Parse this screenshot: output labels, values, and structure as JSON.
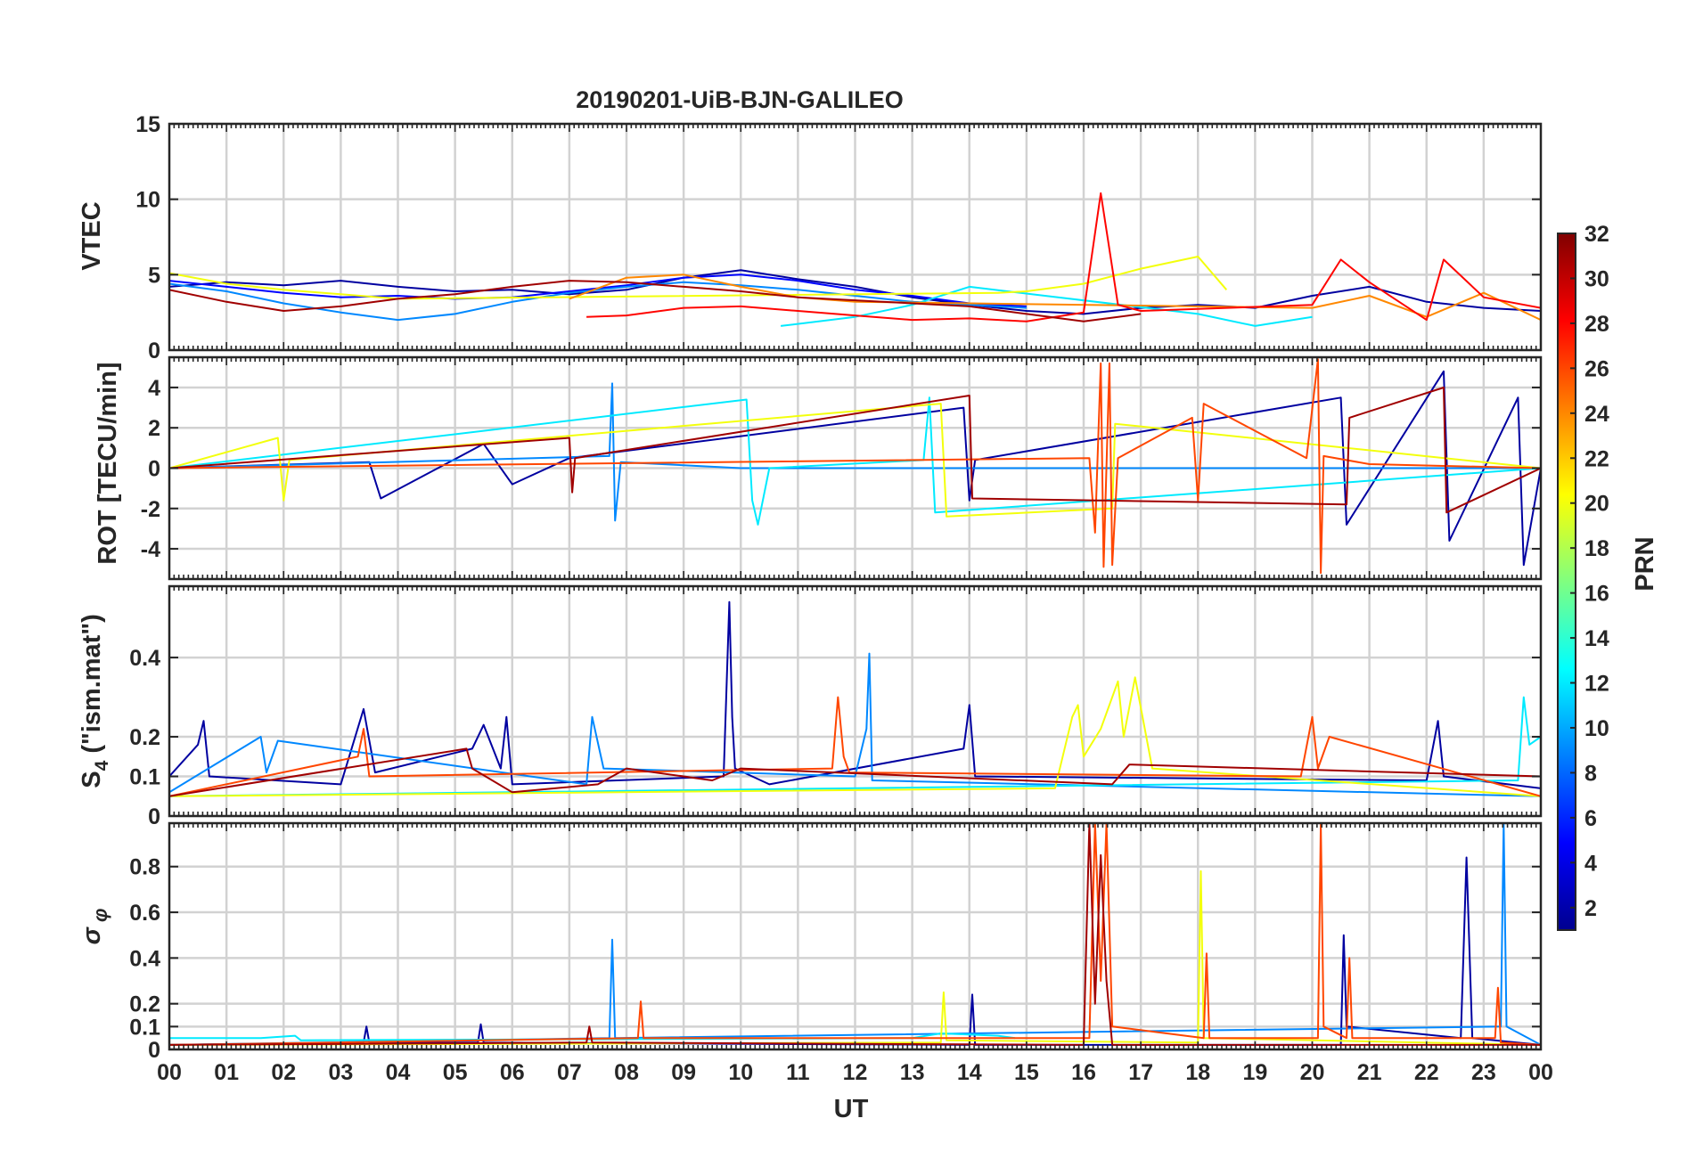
{
  "chart_data": {
    "type": "line",
    "title": "20190201-UiB-BJN-GALILEO",
    "xlabel": "UT",
    "x_tick_labels": [
      "00",
      "01",
      "02",
      "03",
      "04",
      "05",
      "06",
      "07",
      "08",
      "09",
      "10",
      "11",
      "12",
      "13",
      "14",
      "15",
      "16",
      "17",
      "18",
      "19",
      "20",
      "21",
      "22",
      "23",
      "00"
    ],
    "xlim_hours": [
      0,
      24
    ],
    "grid": true,
    "colormap": "jet",
    "colorbar": {
      "label": "PRN",
      "range": [
        1,
        32
      ],
      "tick_labels": [
        "2",
        "4",
        "6",
        "8",
        "10",
        "12",
        "14",
        "16",
        "18",
        "20",
        "22",
        "24",
        "26",
        "28",
        "30",
        "32"
      ],
      "placement": "right"
    },
    "panels": [
      {
        "id": "vtec",
        "ylabel": "VTEC",
        "ylim": [
          0,
          15
        ],
        "y_ticks": [
          0,
          5,
          10,
          15
        ],
        "series": [
          {
            "prn": 2,
            "x": [
              0,
              1,
              2,
              3,
              4,
              5,
              6,
              7,
              8,
              9,
              10,
              11,
              12,
              13,
              14,
              15,
              16,
              17,
              18,
              19,
              20,
              21,
              22,
              23,
              24
            ],
            "y": [
              4.2,
              4.5,
              4.3,
              4.6,
              4.2,
              3.9,
              4.0,
              3.7,
              4.0,
              4.8,
              5.3,
              4.7,
              4.2,
              3.5,
              3.0,
              2.6,
              2.4,
              2.8,
              3.0,
              2.8,
              3.6,
              4.2,
              3.2,
              2.8,
              2.6
            ]
          },
          {
            "prn": 5,
            "x": [
              0,
              1,
              2,
              3,
              4,
              5,
              6,
              7,
              8,
              9,
              10,
              11,
              12,
              13,
              14,
              15
            ],
            "y": [
              4.6,
              4.2,
              3.8,
              3.5,
              3.6,
              3.4,
              3.5,
              3.9,
              4.3,
              4.8,
              5.0,
              4.6,
              4.0,
              3.6,
              3.1,
              2.9
            ]
          },
          {
            "prn": 9,
            "x": [
              0,
              1,
              2,
              3,
              4,
              5,
              6,
              7,
              8,
              9,
              10,
              11,
              12,
              13,
              14,
              15
            ],
            "y": [
              4.4,
              3.9,
              3.1,
              2.5,
              2.0,
              2.4,
              3.2,
              3.8,
              4.2,
              4.5,
              4.3,
              4.0,
              3.6,
              3.2,
              3.0,
              2.8
            ]
          },
          {
            "prn": 12,
            "x": [
              10.7,
              12,
              13,
              14,
              18,
              19,
              20
            ],
            "y": [
              1.6,
              2.2,
              3.0,
              4.2,
              2.4,
              1.6,
              2.2
            ]
          },
          {
            "prn": 20,
            "x": [
              0,
              1,
              2,
              3,
              4,
              14.5,
              15,
              16,
              17,
              18,
              18.5
            ],
            "y": [
              5.1,
              4.4,
              4.0,
              3.7,
              3.4,
              3.8,
              3.9,
              4.4,
              5.4,
              6.2,
              4.0
            ]
          },
          {
            "prn": 24,
            "x": [
              7,
              8,
              9,
              10,
              11,
              12,
              20,
              21,
              22,
              23,
              24
            ],
            "y": [
              3.4,
              4.8,
              5.0,
              4.2,
              3.5,
              3.2,
              2.8,
              3.6,
              2.2,
              3.8,
              2.0
            ]
          },
          {
            "prn": 28,
            "x": [
              7.3,
              8,
              9,
              10,
              11,
              12,
              13,
              14,
              15,
              16,
              16.3,
              16.6,
              17,
              20,
              20.5,
              21,
              22,
              22.3,
              23,
              24
            ],
            "y": [
              2.2,
              2.3,
              2.8,
              2.9,
              2.6,
              2.3,
              2.0,
              2.1,
              1.9,
              2.5,
              10.4,
              3.0,
              2.6,
              3.0,
              6.0,
              4.5,
              2.0,
              6.0,
              3.5,
              2.8
            ]
          },
          {
            "prn": 31,
            "x": [
              0,
              1,
              2,
              3,
              4,
              5,
              6,
              7,
              8,
              9,
              10,
              11,
              12,
              13,
              14,
              15,
              16,
              17
            ],
            "y": [
              4.0,
              3.2,
              2.6,
              2.9,
              3.4,
              3.7,
              4.2,
              4.6,
              4.5,
              4.2,
              3.9,
              3.5,
              3.3,
              3.1,
              2.9,
              2.4,
              1.9,
              2.4
            ]
          }
        ]
      },
      {
        "id": "rot",
        "ylabel": "ROT [TECU/min]",
        "ylim": [
          -5.5,
          5.5
        ],
        "y_ticks": [
          -4,
          -2,
          0,
          2,
          4
        ],
        "series": [
          {
            "prn": 2,
            "x": [
              0,
              3.5,
              3.7,
              5.5,
              6,
              7,
              13.9,
              14,
              14.1,
              20.5,
              20.6,
              22.3,
              22.4,
              23.6,
              23.7,
              24
            ],
            "y": [
              0,
              0.3,
              -1.5,
              1.2,
              -0.8,
              0.5,
              3.0,
              -1.6,
              0.4,
              3.5,
              -2.8,
              4.8,
              -3.6,
              3.5,
              -4.8,
              0
            ]
          },
          {
            "prn": 9,
            "x": [
              0,
              7.7,
              7.75,
              7.8,
              7.9,
              10,
              24
            ],
            "y": [
              0,
              0.6,
              4.2,
              -2.6,
              0.3,
              0,
              0
            ]
          },
          {
            "prn": 12,
            "x": [
              0,
              10.1,
              10.2,
              10.3,
              10.5,
              13.2,
              13.3,
              13.4,
              24
            ],
            "y": [
              0,
              3.4,
              -1.6,
              -2.8,
              0,
              0.4,
              3.5,
              -2.2,
              0
            ]
          },
          {
            "prn": 20,
            "x": [
              0,
              1.9,
              2.0,
              2.1,
              13.5,
              13.6,
              16.5,
              16.55,
              24
            ],
            "y": [
              0,
              1.5,
              -1.6,
              0.4,
              3.2,
              -2.4,
              -2.0,
              2.2,
              0
            ]
          },
          {
            "prn": 26,
            "x": [
              0,
              16.1,
              16.2,
              16.3,
              16.35,
              16.45,
              16.5,
              16.6,
              17.9,
              18.0,
              18.1,
              19.9,
              20.1,
              20.15,
              20.2,
              21,
              24
            ],
            "y": [
              0,
              0.5,
              -3.2,
              5.2,
              -4.9,
              5.2,
              -4.8,
              0.5,
              2.5,
              -1.6,
              3.2,
              0.5,
              5.4,
              -5.2,
              0.6,
              0.2,
              0
            ]
          },
          {
            "prn": 31,
            "x": [
              0,
              7.0,
              7.05,
              7.1,
              14.0,
              14.05,
              20.6,
              20.65,
              22.3,
              22.35,
              24
            ],
            "y": [
              0,
              1.5,
              -1.2,
              0.5,
              3.6,
              -1.5,
              -1.8,
              2.5,
              4.0,
              -2.2,
              0
            ]
          }
        ]
      },
      {
        "id": "s4",
        "ylabel": "S4 (\"ism.mat\")",
        "ylim": [
          0,
          0.58
        ],
        "y_ticks": [
          0,
          0.1,
          0.2,
          0.4
        ],
        "series": [
          {
            "prn": 2,
            "x": [
              0,
              0.5,
              0.6,
              0.7,
              3.0,
              3.4,
              3.6,
              5.3,
              5.5,
              5.8,
              5.9,
              6.0,
              9.7,
              9.8,
              9.85,
              9.9,
              10.5,
              13.9,
              14.0,
              14.1,
              22.0,
              22.2,
              22.3,
              24
            ],
            "y": [
              0.1,
              0.18,
              0.24,
              0.1,
              0.08,
              0.27,
              0.11,
              0.17,
              0.23,
              0.12,
              0.25,
              0.08,
              0.1,
              0.54,
              0.25,
              0.12,
              0.08,
              0.17,
              0.28,
              0.1,
              0.09,
              0.24,
              0.1,
              0.07
            ]
          },
          {
            "prn": 9,
            "x": [
              0,
              1.6,
              1.7,
              1.9,
              7.3,
              7.4,
              7.6,
              12.0,
              12.2,
              12.25,
              12.3,
              24
            ],
            "y": [
              0.06,
              0.2,
              0.11,
              0.19,
              0.08,
              0.25,
              0.12,
              0.1,
              0.22,
              0.41,
              0.09,
              0.05
            ]
          },
          {
            "prn": 12,
            "x": [
              0,
              23.6,
              23.7,
              23.8,
              24
            ],
            "y": [
              0.05,
              0.09,
              0.3,
              0.18,
              0.2
            ]
          },
          {
            "prn": 20,
            "x": [
              0,
              15.5,
              15.8,
              15.9,
              16.0,
              16.3,
              16.6,
              16.7,
              16.9,
              17.2,
              24
            ],
            "y": [
              0.05,
              0.07,
              0.25,
              0.28,
              0.15,
              0.22,
              0.34,
              0.2,
              0.35,
              0.12,
              0.05
            ]
          },
          {
            "prn": 26,
            "x": [
              0,
              3.3,
              3.4,
              3.5,
              11.6,
              11.7,
              11.8,
              11.9,
              19.8,
              20.0,
              20.1,
              20.3,
              24
            ],
            "y": [
              0.05,
              0.15,
              0.22,
              0.1,
              0.12,
              0.3,
              0.15,
              0.11,
              0.1,
              0.25,
              0.12,
              0.2,
              0.05
            ]
          },
          {
            "prn": 31,
            "x": [
              0,
              5.2,
              5.3,
              6.0,
              7.5,
              8.0,
              9.5,
              10.0,
              16.5,
              16.8,
              24
            ],
            "y": [
              0.05,
              0.17,
              0.12,
              0.06,
              0.08,
              0.12,
              0.09,
              0.12,
              0.08,
              0.13,
              0.1
            ]
          }
        ]
      },
      {
        "id": "sigma_phi",
        "ylabel": "σ φ",
        "ylim": [
          0,
          0.99
        ],
        "y_ticks": [
          0,
          0.1,
          0.2,
          0.4,
          0.6,
          0.8
        ],
        "series": [
          {
            "prn": 2,
            "x": [
              0,
              3.4,
              3.45,
              3.5,
              5.4,
              5.45,
              5.5,
              14.0,
              14.05,
              14.1,
              20.5,
              20.55,
              20.6,
              22.6,
              22.7,
              22.8,
              24
            ],
            "y": [
              0.02,
              0.03,
              0.1,
              0.03,
              0.03,
              0.11,
              0.03,
              0.02,
              0.24,
              0.02,
              0.02,
              0.5,
              0.1,
              0.05,
              0.84,
              0.05,
              0.02
            ]
          },
          {
            "prn": 9,
            "x": [
              0,
              7.7,
              7.75,
              7.8,
              23.3,
              23.35,
              23.4,
              24
            ],
            "y": [
              0.02,
              0.05,
              0.48,
              0.05,
              0.1,
              0.99,
              0.1,
              0.02
            ]
          },
          {
            "prn": 12,
            "x": [
              0,
              1.6,
              2.2,
              2.3,
              13.0,
              13.5,
              14.5,
              14.8
            ],
            "y": [
              0.05,
              0.05,
              0.06,
              0.04,
              0.05,
              0.07,
              0.06,
              0.05
            ]
          },
          {
            "prn": 20,
            "x": [
              0,
              13.5,
              13.55,
              13.6,
              18.0,
              18.05,
              18.1,
              24
            ],
            "y": [
              0.02,
              0.03,
              0.25,
              0.04,
              0.03,
              0.78,
              0.05,
              0.02
            ]
          },
          {
            "prn": 26,
            "x": [
              0,
              8.2,
              8.25,
              8.3,
              16.1,
              16.2,
              16.3,
              16.4,
              16.5,
              18.1,
              18.15,
              18.2,
              20.1,
              20.15,
              20.2,
              20.6,
              20.65,
              20.7,
              23.2,
              23.25,
              23.3,
              24
            ],
            "y": [
              0.02,
              0.05,
              0.21,
              0.05,
              0.05,
              0.99,
              0.3,
              0.99,
              0.1,
              0.05,
              0.42,
              0.05,
              0.05,
              0.99,
              0.1,
              0.05,
              0.4,
              0.05,
              0.05,
              0.27,
              0.03,
              0.02
            ]
          },
          {
            "prn": 31,
            "x": [
              0,
              7.3,
              7.35,
              7.4,
              16.0,
              16.1,
              16.2,
              16.3,
              16.4,
              16.5,
              24
            ],
            "y": [
              0.02,
              0.03,
              0.1,
              0.03,
              0.02,
              0.99,
              0.2,
              0.85,
              0.3,
              0.02,
              0.02
            ]
          }
        ]
      }
    ]
  }
}
